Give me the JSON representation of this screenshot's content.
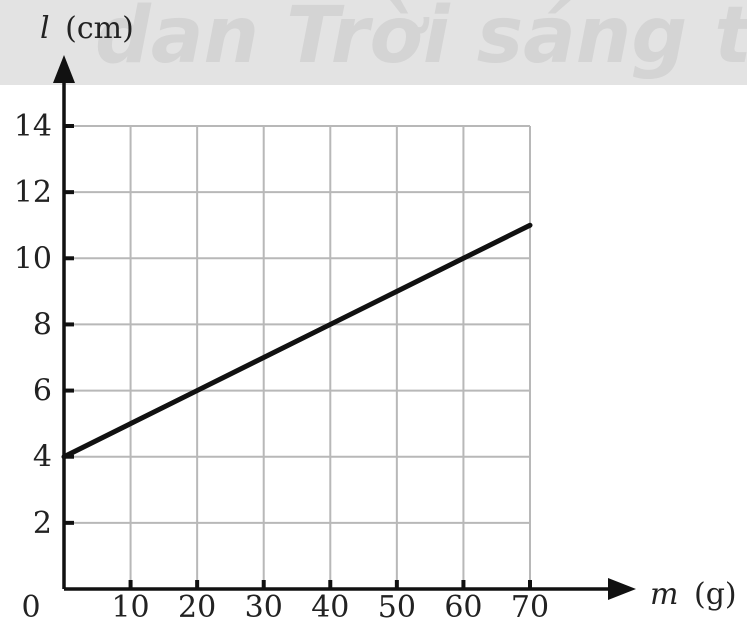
{
  "watermark": "dan Trời sáng tạo",
  "colors": {
    "line": "#111111",
    "grid": "#b8b8b8",
    "axis": "#111111",
    "watermark_band": "#e3e3e3"
  },
  "chart_data": {
    "type": "line",
    "xlabel_var": "m",
    "xlabel_unit": "(g)",
    "ylabel_var": "l",
    "ylabel_unit": "(cm)",
    "origin_label": "0",
    "x_ticks": [
      10,
      20,
      30,
      40,
      50,
      60,
      70
    ],
    "y_ticks": [
      2,
      4,
      6,
      8,
      10,
      12,
      14
    ],
    "xlim": [
      0,
      70
    ],
    "ylim": [
      0,
      14
    ],
    "grid": true,
    "series": [
      {
        "x": [
          0,
          10,
          20,
          30,
          40,
          50,
          60,
          70
        ],
        "y": [
          4,
          5,
          6,
          7,
          8,
          9,
          10,
          11
        ]
      }
    ]
  }
}
